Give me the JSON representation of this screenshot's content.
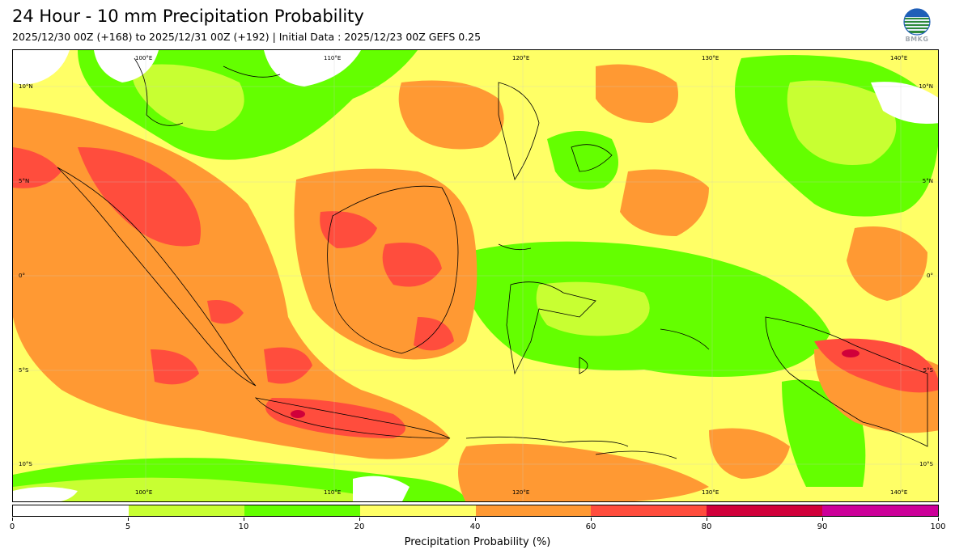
{
  "header": {
    "title": "24 Hour - 10 mm Precipitation Probability",
    "subtitle": "2025/12/30 00Z (+168) to 2025/12/31 00Z (+192) | Initial Data : 2025/12/23 00Z GEFS 0.25",
    "logo_text": "BMKG"
  },
  "map": {
    "top_lon_labels": [
      "100°E",
      "110°E",
      "120°E",
      "130°E",
      "140°E"
    ],
    "bottom_lon_labels": [
      "100°E",
      "110°E",
      "120°E",
      "130°E",
      "140°E"
    ],
    "left_lat_labels": [
      "10°N",
      "5°N",
      "0°",
      "5°S",
      "10°S"
    ],
    "right_lat_labels": [
      "10°N",
      "5°N",
      "0°",
      "5°S",
      "10°S"
    ]
  },
  "colorbar": {
    "title": "Precipitation Probability (%)",
    "ticks": [
      "0",
      "5",
      "10",
      "20",
      "40",
      "60",
      "80",
      "90",
      "100"
    ],
    "colors": [
      "#ffffff",
      "#c8ff32",
      "#64ff00",
      "#ffff66",
      "#ff9933",
      "#ff4d3d",
      "#d0003a",
      "#cc0099"
    ],
    "frame_color": "#000000"
  }
}
